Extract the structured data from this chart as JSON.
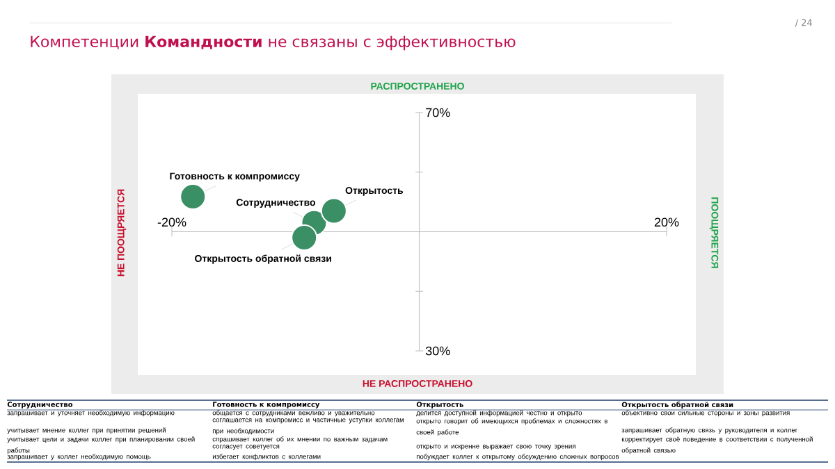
{
  "chart_data": {
    "type": "scatter",
    "title": "Компетенции **Командности** не связаны с эффективностью",
    "xlim": [
      -20,
      20
    ],
    "ylim": [
      30,
      70
    ],
    "xticks": [
      {
        "value": -20,
        "label": "-20%"
      },
      {
        "value": 0,
        "label": null
      },
      {
        "value": 20,
        "label": "20%"
      }
    ],
    "yticks": [
      {
        "value": 30,
        "label": "30%"
      },
      {
        "value": 40,
        "label": null
      },
      {
        "value": 50,
        "label": null
      },
      {
        "value": 60,
        "label": null
      },
      {
        "value": 70,
        "label": "70%"
      }
    ],
    "marker": "circle",
    "series": [
      {
        "name": "Сотрудничество",
        "color": "#3a8f64",
        "x": [
          -8.5
        ],
        "values": [
          51.5
        ]
      },
      {
        "name": "Готовность к компромиссу",
        "color": "#3a8f64",
        "x": [
          -18.3
        ],
        "values": [
          55.9
        ]
      },
      {
        "name": "Открытость",
        "color": "#3a8f64",
        "x": [
          -6.9
        ],
        "values": [
          53.5
        ]
      },
      {
        "name": "Открытость обратной связи",
        "color": "#3a8f64",
        "x": [
          -9.3
        ],
        "values": [
          49.0
        ]
      }
    ],
    "annotations": [
      "РАСПРОСТРАНЕНО",
      "НЕ РАСПРОСТРАНЕНО",
      "НЕ ПООЩРЯЕТСЯ",
      "ПООЩРЯЕТСЯ",
      "/ 24",
      "запрашивает и уточняет необходимую информацию",
      "учитывает мнение коллег при принятии решений",
      "учитывает цели и задачи коллег при планировании своей работы",
      "запрашивает у коллег необходимую помощь",
      "общается с сотрудниками вежливо и уважительно",
      "соглашается на компромисс и частичные уступки коллегам при необходимости",
      "спрашивает коллег об их мнении по важным задачам",
      "согласует  советуется",
      "избегает конфликтов с коллегами",
      "делится доступной информацией честно и открыто",
      "открыто говорит об имеющихся проблемах и сложностях в своей работе",
      "открыто и искренне выражает свою точку зрения",
      "побуждает коллег к открытому обсуждению сложных вопросов",
      "объективно свои сильные стороны и зоны развития",
      "запрашивает обратную связь у руководителя и коллег",
      "корректирует своё поведение в соответствии с полученной обратной связью"
    ]
  }
}
